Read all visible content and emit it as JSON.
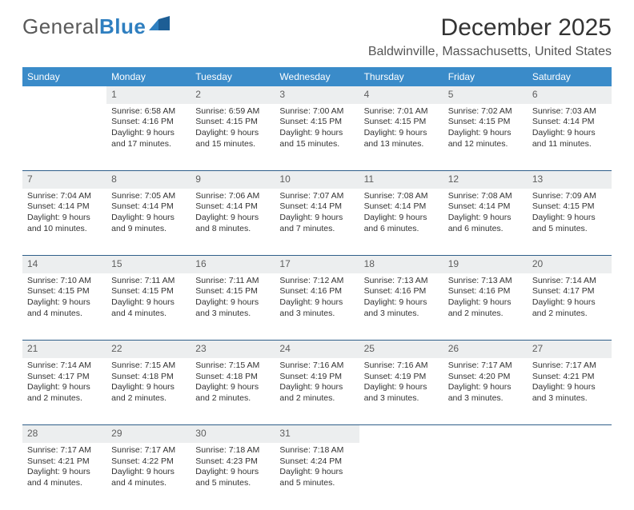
{
  "brand": {
    "name_a": "General",
    "name_b": "Blue"
  },
  "title": "December 2025",
  "location": "Baldwinville, Massachusetts, United States",
  "colors": {
    "header_bg": "#3a8bc9",
    "header_text": "#ffffff",
    "daynum_bg": "#eceeef",
    "row_divider": "#2f5f8a",
    "body_text": "#333333",
    "logo_blue": "#2f7fc0",
    "logo_gray": "#5a5a5a"
  },
  "type": "table",
  "weekdays": [
    "Sunday",
    "Monday",
    "Tuesday",
    "Wednesday",
    "Thursday",
    "Friday",
    "Saturday"
  ],
  "weeks": [
    [
      {
        "day": "",
        "lines": []
      },
      {
        "day": "1",
        "lines": [
          "Sunrise: 6:58 AM",
          "Sunset: 4:16 PM",
          "Daylight: 9 hours",
          "and 17 minutes."
        ]
      },
      {
        "day": "2",
        "lines": [
          "Sunrise: 6:59 AM",
          "Sunset: 4:15 PM",
          "Daylight: 9 hours",
          "and 15 minutes."
        ]
      },
      {
        "day": "3",
        "lines": [
          "Sunrise: 7:00 AM",
          "Sunset: 4:15 PM",
          "Daylight: 9 hours",
          "and 15 minutes."
        ]
      },
      {
        "day": "4",
        "lines": [
          "Sunrise: 7:01 AM",
          "Sunset: 4:15 PM",
          "Daylight: 9 hours",
          "and 13 minutes."
        ]
      },
      {
        "day": "5",
        "lines": [
          "Sunrise: 7:02 AM",
          "Sunset: 4:15 PM",
          "Daylight: 9 hours",
          "and 12 minutes."
        ]
      },
      {
        "day": "6",
        "lines": [
          "Sunrise: 7:03 AM",
          "Sunset: 4:14 PM",
          "Daylight: 9 hours",
          "and 11 minutes."
        ]
      }
    ],
    [
      {
        "day": "7",
        "lines": [
          "Sunrise: 7:04 AM",
          "Sunset: 4:14 PM",
          "Daylight: 9 hours",
          "and 10 minutes."
        ]
      },
      {
        "day": "8",
        "lines": [
          "Sunrise: 7:05 AM",
          "Sunset: 4:14 PM",
          "Daylight: 9 hours",
          "and 9 minutes."
        ]
      },
      {
        "day": "9",
        "lines": [
          "Sunrise: 7:06 AM",
          "Sunset: 4:14 PM",
          "Daylight: 9 hours",
          "and 8 minutes."
        ]
      },
      {
        "day": "10",
        "lines": [
          "Sunrise: 7:07 AM",
          "Sunset: 4:14 PM",
          "Daylight: 9 hours",
          "and 7 minutes."
        ]
      },
      {
        "day": "11",
        "lines": [
          "Sunrise: 7:08 AM",
          "Sunset: 4:14 PM",
          "Daylight: 9 hours",
          "and 6 minutes."
        ]
      },
      {
        "day": "12",
        "lines": [
          "Sunrise: 7:08 AM",
          "Sunset: 4:14 PM",
          "Daylight: 9 hours",
          "and 6 minutes."
        ]
      },
      {
        "day": "13",
        "lines": [
          "Sunrise: 7:09 AM",
          "Sunset: 4:15 PM",
          "Daylight: 9 hours",
          "and 5 minutes."
        ]
      }
    ],
    [
      {
        "day": "14",
        "lines": [
          "Sunrise: 7:10 AM",
          "Sunset: 4:15 PM",
          "Daylight: 9 hours",
          "and 4 minutes."
        ]
      },
      {
        "day": "15",
        "lines": [
          "Sunrise: 7:11 AM",
          "Sunset: 4:15 PM",
          "Daylight: 9 hours",
          "and 4 minutes."
        ]
      },
      {
        "day": "16",
        "lines": [
          "Sunrise: 7:11 AM",
          "Sunset: 4:15 PM",
          "Daylight: 9 hours",
          "and 3 minutes."
        ]
      },
      {
        "day": "17",
        "lines": [
          "Sunrise: 7:12 AM",
          "Sunset: 4:16 PM",
          "Daylight: 9 hours",
          "and 3 minutes."
        ]
      },
      {
        "day": "18",
        "lines": [
          "Sunrise: 7:13 AM",
          "Sunset: 4:16 PM",
          "Daylight: 9 hours",
          "and 3 minutes."
        ]
      },
      {
        "day": "19",
        "lines": [
          "Sunrise: 7:13 AM",
          "Sunset: 4:16 PM",
          "Daylight: 9 hours",
          "and 2 minutes."
        ]
      },
      {
        "day": "20",
        "lines": [
          "Sunrise: 7:14 AM",
          "Sunset: 4:17 PM",
          "Daylight: 9 hours",
          "and 2 minutes."
        ]
      }
    ],
    [
      {
        "day": "21",
        "lines": [
          "Sunrise: 7:14 AM",
          "Sunset: 4:17 PM",
          "Daylight: 9 hours",
          "and 2 minutes."
        ]
      },
      {
        "day": "22",
        "lines": [
          "Sunrise: 7:15 AM",
          "Sunset: 4:18 PM",
          "Daylight: 9 hours",
          "and 2 minutes."
        ]
      },
      {
        "day": "23",
        "lines": [
          "Sunrise: 7:15 AM",
          "Sunset: 4:18 PM",
          "Daylight: 9 hours",
          "and 2 minutes."
        ]
      },
      {
        "day": "24",
        "lines": [
          "Sunrise: 7:16 AM",
          "Sunset: 4:19 PM",
          "Daylight: 9 hours",
          "and 2 minutes."
        ]
      },
      {
        "day": "25",
        "lines": [
          "Sunrise: 7:16 AM",
          "Sunset: 4:19 PM",
          "Daylight: 9 hours",
          "and 3 minutes."
        ]
      },
      {
        "day": "26",
        "lines": [
          "Sunrise: 7:17 AM",
          "Sunset: 4:20 PM",
          "Daylight: 9 hours",
          "and 3 minutes."
        ]
      },
      {
        "day": "27",
        "lines": [
          "Sunrise: 7:17 AM",
          "Sunset: 4:21 PM",
          "Daylight: 9 hours",
          "and 3 minutes."
        ]
      }
    ],
    [
      {
        "day": "28",
        "lines": [
          "Sunrise: 7:17 AM",
          "Sunset: 4:21 PM",
          "Daylight: 9 hours",
          "and 4 minutes."
        ]
      },
      {
        "day": "29",
        "lines": [
          "Sunrise: 7:17 AM",
          "Sunset: 4:22 PM",
          "Daylight: 9 hours",
          "and 4 minutes."
        ]
      },
      {
        "day": "30",
        "lines": [
          "Sunrise: 7:18 AM",
          "Sunset: 4:23 PM",
          "Daylight: 9 hours",
          "and 5 minutes."
        ]
      },
      {
        "day": "31",
        "lines": [
          "Sunrise: 7:18 AM",
          "Sunset: 4:24 PM",
          "Daylight: 9 hours",
          "and 5 minutes."
        ]
      },
      {
        "day": "",
        "lines": []
      },
      {
        "day": "",
        "lines": []
      },
      {
        "day": "",
        "lines": []
      }
    ]
  ]
}
